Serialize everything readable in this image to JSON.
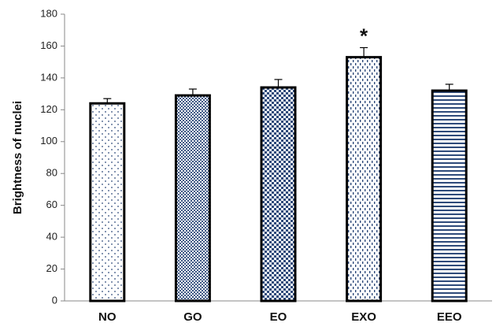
{
  "chart_data": {
    "type": "bar",
    "title": "",
    "xlabel": "",
    "ylabel": "Brightness of nuclei",
    "ylim": [
      0,
      180
    ],
    "yticks": [
      0,
      20,
      40,
      60,
      80,
      100,
      120,
      140,
      160,
      180
    ],
    "categories": [
      "NO",
      "GO",
      "EO",
      "EXO",
      "EEO"
    ],
    "values": [
      124,
      129,
      134,
      153,
      132
    ],
    "errors": [
      3,
      4,
      5,
      6,
      4
    ],
    "annotations": [
      {
        "category": "EXO",
        "text": "*"
      }
    ],
    "grid": false,
    "legend": "none",
    "bar_fill_patterns": [
      "sparse-dots",
      "dense-dots",
      "checker",
      "dashed-stripes",
      "horizontal-lines"
    ],
    "colors": {
      "bar_outline": "#000000",
      "pattern_ink": "#2e4a7a",
      "axis": "#888888",
      "background": "#ffffff"
    }
  }
}
